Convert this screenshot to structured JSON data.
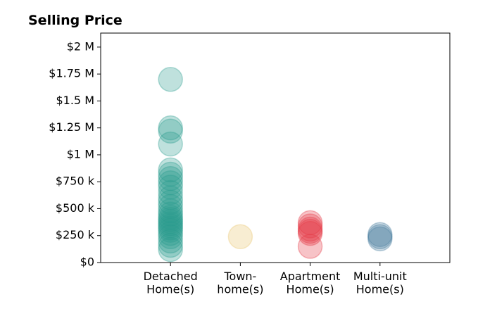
{
  "chart_data": {
    "type": "strip",
    "title": "Selling Price",
    "categories": [
      "Detached\nHome(s)",
      "Town-\nhome(s)",
      "Apartment\nHome(s)",
      "Multi-unit\nHome(s)"
    ],
    "colors": [
      "#2a9d8f",
      "#e9c46a",
      "#e63946",
      "#457b9d"
    ],
    "values": [
      [
        1700000,
        1250000,
        1220000,
        1100000,
        860000,
        820000,
        780000,
        740000,
        700000,
        650000,
        600000,
        560000,
        520000,
        480000,
        450000,
        420000,
        400000,
        380000,
        360000,
        340000,
        320000,
        300000,
        270000,
        240000,
        200000,
        160000,
        120000
      ],
      [
        240000
      ],
      [
        370000,
        340000,
        310000,
        290000,
        270000,
        150000
      ],
      [
        260000,
        240000,
        220000
      ]
    ],
    "xlim": [
      0,
      5
    ],
    "ylim": [
      0,
      2130000
    ],
    "yticks": [
      {
        "value": 0,
        "label": "$0"
      },
      {
        "value": 250000,
        "label": "$250 k"
      },
      {
        "value": 500000,
        "label": "$500 k"
      },
      {
        "value": 750000,
        "label": "$750 k"
      },
      {
        "value": 1000000,
        "label": "$1 M"
      },
      {
        "value": 1250000,
        "label": "$1.25 M"
      },
      {
        "value": 1500000,
        "label": "$1.5 M"
      },
      {
        "value": 1750000,
        "label": "$1.75 M"
      },
      {
        "value": 2000000,
        "label": "$2 M"
      }
    ],
    "grid": false
  }
}
